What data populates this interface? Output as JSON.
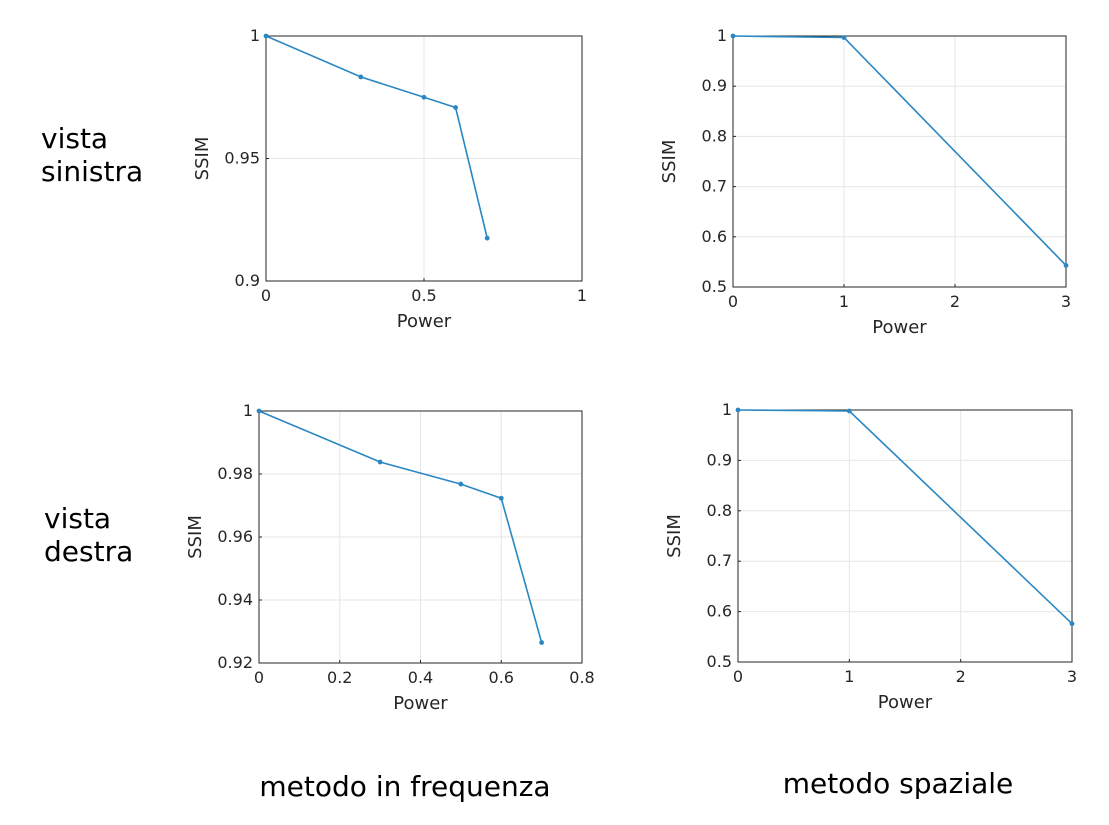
{
  "row_labels": [
    [
      "vista",
      "sinistra"
    ],
    [
      "vista",
      "destra"
    ]
  ],
  "column_labels": [
    "metodo in frequenza",
    "metodo spaziale"
  ],
  "colors": {
    "line": "#2a87c3",
    "axis": "#262626",
    "grid": "#e6e6e6",
    "text": "#262626"
  },
  "chart_data": [
    {
      "type": "line",
      "panel": "vista sinistra / metodo in frequenza",
      "xlabel": "Power",
      "ylabel": "SSIM",
      "xlim": [
        0,
        1
      ],
      "ylim": [
        0.9,
        1
      ],
      "xticks": [
        0,
        0.5,
        1
      ],
      "xtick_labels": [
        "0",
        "0.5",
        "1"
      ],
      "yticks": [
        0.9,
        0.95,
        1
      ],
      "ytick_labels": [
        "0.9",
        "0.95",
        "1"
      ],
      "grid": true,
      "x": [
        0,
        0.3,
        0.5,
        0.6,
        0.7
      ],
      "y": [
        1.0,
        0.9833,
        0.975,
        0.9708,
        0.9175
      ]
    },
    {
      "type": "line",
      "panel": "vista sinistra / metodo spaziale",
      "xlabel": "Power",
      "ylabel": "SSIM",
      "xlim": [
        0,
        3
      ],
      "ylim": [
        0.5,
        1
      ],
      "xticks": [
        0,
        1,
        2,
        3
      ],
      "xtick_labels": [
        "0",
        "1",
        "2",
        "3"
      ],
      "yticks": [
        0.5,
        0.6,
        0.7,
        0.8,
        0.9,
        1
      ],
      "ytick_labels": [
        "0.5",
        "0.6",
        "0.7",
        "0.8",
        "0.9",
        "1"
      ],
      "grid": true,
      "x": [
        0,
        1,
        3
      ],
      "y": [
        1.0,
        0.997,
        0.543
      ]
    },
    {
      "type": "line",
      "panel": "vista destra / metodo in frequenza",
      "xlabel": "Power",
      "ylabel": "SSIM",
      "xlim": [
        0,
        0.8
      ],
      "ylim": [
        0.92,
        1
      ],
      "xticks": [
        0,
        0.2,
        0.4,
        0.6,
        0.8
      ],
      "xtick_labels": [
        "0",
        "0.2",
        "0.4",
        "0.6",
        "0.8"
      ],
      "yticks": [
        0.92,
        0.94,
        0.96,
        0.98,
        1
      ],
      "ytick_labels": [
        "0.92",
        "0.94",
        "0.96",
        "0.98",
        "1"
      ],
      "grid": true,
      "x": [
        0,
        0.3,
        0.5,
        0.6,
        0.7
      ],
      "y": [
        1.0,
        0.9838,
        0.9768,
        0.9723,
        0.9265
      ]
    },
    {
      "type": "line",
      "panel": "vista destra / metodo spaziale",
      "xlabel": "Power",
      "ylabel": "SSIM",
      "xlim": [
        0,
        3
      ],
      "ylim": [
        0.5,
        1
      ],
      "xticks": [
        0,
        1,
        2,
        3
      ],
      "xtick_labels": [
        "0",
        "1",
        "2",
        "3"
      ],
      "yticks": [
        0.5,
        0.6,
        0.7,
        0.8,
        0.9,
        1
      ],
      "ytick_labels": [
        "0.5",
        "0.6",
        "0.7",
        "0.8",
        "0.9",
        "1"
      ],
      "grid": true,
      "x": [
        0,
        1,
        3
      ],
      "y": [
        1.0,
        0.998,
        0.576
      ]
    }
  ]
}
